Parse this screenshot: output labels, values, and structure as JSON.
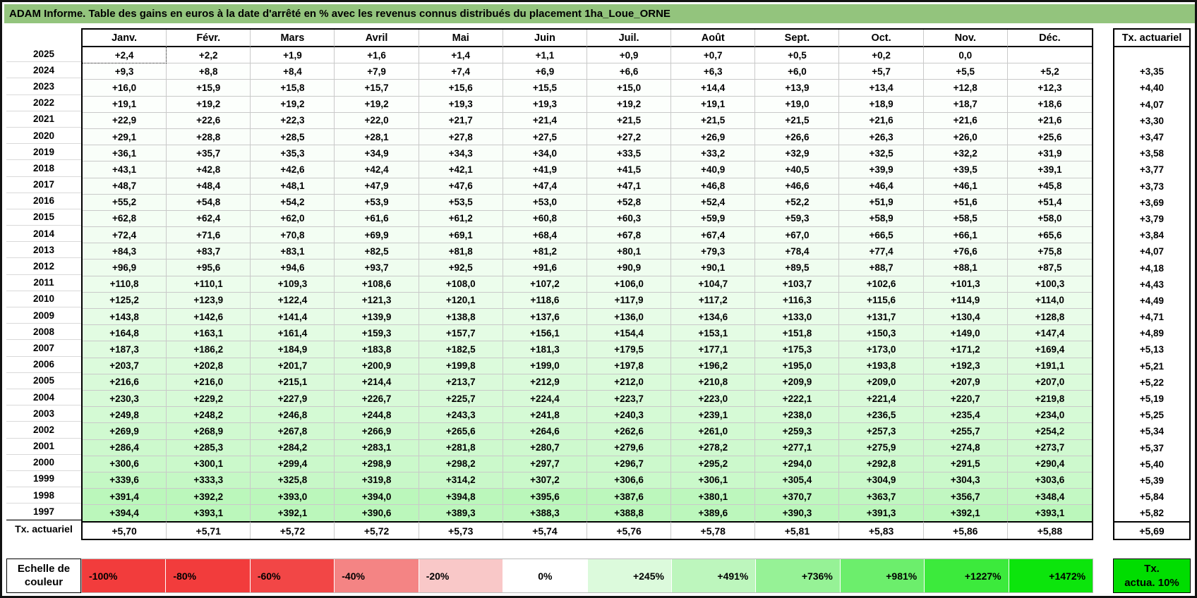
{
  "title": "ADAM Informe. Table des gains en euros à la date d'arrêté en % avec les revenus connus distribués du placement 1ha_Loue_ORNE",
  "columns": [
    "Janv.",
    "Févr.",
    "Mars",
    "Avril",
    "Mai",
    "Juin",
    "Juil.",
    "Août",
    "Sept.",
    "Oct.",
    "Nov.",
    "Déc."
  ],
  "right_column_header": "Tx. actuariel",
  "footer_label": "Tx. actuariel",
  "rows": [
    {
      "year": "2025",
      "values": [
        "+2,4",
        "+2,2",
        "+1,9",
        "+1,6",
        "+1,4",
        "+1,1",
        "+0,9",
        "+0,7",
        "+0,5",
        "+0,2",
        "0,0",
        ""
      ],
      "tx": ""
    },
    {
      "year": "2024",
      "values": [
        "+9,3",
        "+8,8",
        "+8,4",
        "+7,9",
        "+7,4",
        "+6,9",
        "+6,6",
        "+6,3",
        "+6,0",
        "+5,7",
        "+5,5",
        "+5,2"
      ],
      "tx": "+3,35"
    },
    {
      "year": "2023",
      "values": [
        "+16,0",
        "+15,9",
        "+15,8",
        "+15,7",
        "+15,6",
        "+15,5",
        "+15,0",
        "+14,4",
        "+13,9",
        "+13,4",
        "+12,8",
        "+12,3"
      ],
      "tx": "+4,40"
    },
    {
      "year": "2022",
      "values": [
        "+19,1",
        "+19,2",
        "+19,2",
        "+19,2",
        "+19,3",
        "+19,3",
        "+19,2",
        "+19,1",
        "+19,0",
        "+18,9",
        "+18,7",
        "+18,6"
      ],
      "tx": "+4,07"
    },
    {
      "year": "2021",
      "values": [
        "+22,9",
        "+22,6",
        "+22,3",
        "+22,0",
        "+21,7",
        "+21,4",
        "+21,5",
        "+21,5",
        "+21,5",
        "+21,6",
        "+21,6",
        "+21,6"
      ],
      "tx": "+3,30"
    },
    {
      "year": "2020",
      "values": [
        "+29,1",
        "+28,8",
        "+28,5",
        "+28,1",
        "+27,8",
        "+27,5",
        "+27,2",
        "+26,9",
        "+26,6",
        "+26,3",
        "+26,0",
        "+25,6"
      ],
      "tx": "+3,47"
    },
    {
      "year": "2019",
      "values": [
        "+36,1",
        "+35,7",
        "+35,3",
        "+34,9",
        "+34,3",
        "+34,0",
        "+33,5",
        "+33,2",
        "+32,9",
        "+32,5",
        "+32,2",
        "+31,9"
      ],
      "tx": "+3,58"
    },
    {
      "year": "2018",
      "values": [
        "+43,1",
        "+42,8",
        "+42,6",
        "+42,4",
        "+42,1",
        "+41,9",
        "+41,5",
        "+40,9",
        "+40,5",
        "+39,9",
        "+39,5",
        "+39,1"
      ],
      "tx": "+3,77"
    },
    {
      "year": "2017",
      "values": [
        "+48,7",
        "+48,4",
        "+48,1",
        "+47,9",
        "+47,6",
        "+47,4",
        "+47,1",
        "+46,8",
        "+46,6",
        "+46,4",
        "+46,1",
        "+45,8"
      ],
      "tx": "+3,73"
    },
    {
      "year": "2016",
      "values": [
        "+55,2",
        "+54,8",
        "+54,2",
        "+53,9",
        "+53,5",
        "+53,0",
        "+52,8",
        "+52,4",
        "+52,2",
        "+51,9",
        "+51,6",
        "+51,4"
      ],
      "tx": "+3,69"
    },
    {
      "year": "2015",
      "values": [
        "+62,8",
        "+62,4",
        "+62,0",
        "+61,6",
        "+61,2",
        "+60,8",
        "+60,3",
        "+59,9",
        "+59,3",
        "+58,9",
        "+58,5",
        "+58,0"
      ],
      "tx": "+3,79"
    },
    {
      "year": "2014",
      "values": [
        "+72,4",
        "+71,6",
        "+70,8",
        "+69,9",
        "+69,1",
        "+68,4",
        "+67,8",
        "+67,4",
        "+67,0",
        "+66,5",
        "+66,1",
        "+65,6"
      ],
      "tx": "+3,84"
    },
    {
      "year": "2013",
      "values": [
        "+84,3",
        "+83,7",
        "+83,1",
        "+82,5",
        "+81,8",
        "+81,2",
        "+80,1",
        "+79,3",
        "+78,4",
        "+77,4",
        "+76,6",
        "+75,8"
      ],
      "tx": "+4,07"
    },
    {
      "year": "2012",
      "values": [
        "+96,9",
        "+95,6",
        "+94,6",
        "+93,7",
        "+92,5",
        "+91,6",
        "+90,9",
        "+90,1",
        "+89,5",
        "+88,7",
        "+88,1",
        "+87,5"
      ],
      "tx": "+4,18"
    },
    {
      "year": "2011",
      "values": [
        "+110,8",
        "+110,1",
        "+109,3",
        "+108,6",
        "+108,0",
        "+107,2",
        "+106,0",
        "+104,7",
        "+103,7",
        "+102,6",
        "+101,3",
        "+100,3"
      ],
      "tx": "+4,43"
    },
    {
      "year": "2010",
      "values": [
        "+125,2",
        "+123,9",
        "+122,4",
        "+121,3",
        "+120,1",
        "+118,6",
        "+117,9",
        "+117,2",
        "+116,3",
        "+115,6",
        "+114,9",
        "+114,0"
      ],
      "tx": "+4,49"
    },
    {
      "year": "2009",
      "values": [
        "+143,8",
        "+142,6",
        "+141,4",
        "+139,9",
        "+138,8",
        "+137,6",
        "+136,0",
        "+134,6",
        "+133,0",
        "+131,7",
        "+130,4",
        "+128,8"
      ],
      "tx": "+4,71"
    },
    {
      "year": "2008",
      "values": [
        "+164,8",
        "+163,1",
        "+161,4",
        "+159,3",
        "+157,7",
        "+156,1",
        "+154,4",
        "+153,1",
        "+151,8",
        "+150,3",
        "+149,0",
        "+147,4"
      ],
      "tx": "+4,89"
    },
    {
      "year": "2007",
      "values": [
        "+187,3",
        "+186,2",
        "+184,9",
        "+183,8",
        "+182,5",
        "+181,3",
        "+179,5",
        "+177,1",
        "+175,3",
        "+173,0",
        "+171,2",
        "+169,4"
      ],
      "tx": "+5,13"
    },
    {
      "year": "2006",
      "values": [
        "+203,7",
        "+202,8",
        "+201,7",
        "+200,9",
        "+199,8",
        "+199,0",
        "+197,8",
        "+196,2",
        "+195,0",
        "+193,8",
        "+192,3",
        "+191,1"
      ],
      "tx": "+5,21"
    },
    {
      "year": "2005",
      "values": [
        "+216,6",
        "+216,0",
        "+215,1",
        "+214,4",
        "+213,7",
        "+212,9",
        "+212,0",
        "+210,8",
        "+209,9",
        "+209,0",
        "+207,9",
        "+207,0"
      ],
      "tx": "+5,22"
    },
    {
      "year": "2004",
      "values": [
        "+230,3",
        "+229,2",
        "+227,9",
        "+226,7",
        "+225,7",
        "+224,4",
        "+223,7",
        "+223,0",
        "+222,1",
        "+221,4",
        "+220,7",
        "+219,8"
      ],
      "tx": "+5,19"
    },
    {
      "year": "2003",
      "values": [
        "+249,8",
        "+248,2",
        "+246,8",
        "+244,8",
        "+243,3",
        "+241,8",
        "+240,3",
        "+239,1",
        "+238,0",
        "+236,5",
        "+235,4",
        "+234,0"
      ],
      "tx": "+5,25"
    },
    {
      "year": "2002",
      "values": [
        "+269,9",
        "+268,9",
        "+267,8",
        "+266,9",
        "+265,6",
        "+264,6",
        "+262,6",
        "+261,0",
        "+259,3",
        "+257,3",
        "+255,7",
        "+254,2"
      ],
      "tx": "+5,34"
    },
    {
      "year": "2001",
      "values": [
        "+286,4",
        "+285,3",
        "+284,2",
        "+283,1",
        "+281,8",
        "+280,7",
        "+279,6",
        "+278,2",
        "+277,1",
        "+275,9",
        "+274,8",
        "+273,7"
      ],
      "tx": "+5,37"
    },
    {
      "year": "2000",
      "values": [
        "+300,6",
        "+300,1",
        "+299,4",
        "+298,9",
        "+298,2",
        "+297,7",
        "+296,7",
        "+295,2",
        "+294,0",
        "+292,8",
        "+291,5",
        "+290,4"
      ],
      "tx": "+5,40"
    },
    {
      "year": "1999",
      "values": [
        "+339,6",
        "+333,3",
        "+325,8",
        "+319,8",
        "+314,2",
        "+307,2",
        "+306,6",
        "+306,1",
        "+305,4",
        "+304,9",
        "+304,3",
        "+303,6"
      ],
      "tx": "+5,39"
    },
    {
      "year": "1998",
      "values": [
        "+391,4",
        "+392,2",
        "+393,0",
        "+394,0",
        "+394,8",
        "+395,6",
        "+387,6",
        "+380,1",
        "+370,7",
        "+363,7",
        "+356,7",
        "+348,4"
      ],
      "tx": "+5,84"
    },
    {
      "year": "1997",
      "values": [
        "+394,4",
        "+393,1",
        "+392,1",
        "+390,6",
        "+389,3",
        "+388,3",
        "+388,8",
        "+389,6",
        "+390,3",
        "+391,3",
        "+392,1",
        "+393,1"
      ],
      "tx": "+5,82"
    }
  ],
  "footer_row": {
    "values": [
      "+5,70",
      "+5,71",
      "+5,72",
      "+5,72",
      "+5,73",
      "+5,74",
      "+5,76",
      "+5,78",
      "+5,81",
      "+5,83",
      "+5,86",
      "+5,88"
    ],
    "tx": "+5,69"
  },
  "legend": {
    "label_line1": "Echelle de",
    "label_line2": "couleur",
    "cells": [
      {
        "label": "-100%",
        "color": "#f23c3c",
        "align": "left"
      },
      {
        "label": "-80%",
        "color": "#f23c3c",
        "align": "left"
      },
      {
        "label": "-60%",
        "color": "#f24646",
        "align": "left"
      },
      {
        "label": "-40%",
        "color": "#f48484",
        "align": "left"
      },
      {
        "label": "-20%",
        "color": "#f9c8c8",
        "align": "left"
      },
      {
        "label": "0%",
        "color": "#ffffff",
        "align": "center"
      },
      {
        "label": "+245%",
        "color": "#dcfadc",
        "align": "right"
      },
      {
        "label": "+491%",
        "color": "#bdf6bd",
        "align": "right"
      },
      {
        "label": "+736%",
        "color": "#96f296",
        "align": "right"
      },
      {
        "label": "+981%",
        "color": "#6cee6c",
        "align": "right"
      },
      {
        "label": "+1227%",
        "color": "#3cea3c",
        "align": "right"
      },
      {
        "label": "+1472%",
        "color": "#0ce50c",
        "align": "right"
      }
    ],
    "box_line1": "Tx.",
    "box_line2": "actua. 10%",
    "box_color": "#00dd00"
  },
  "colors": {
    "title_bg": "#93c47d",
    "grid_line": "#c9c9c9",
    "ramp_green": "#00e000",
    "ramp_max_value": 1472
  }
}
